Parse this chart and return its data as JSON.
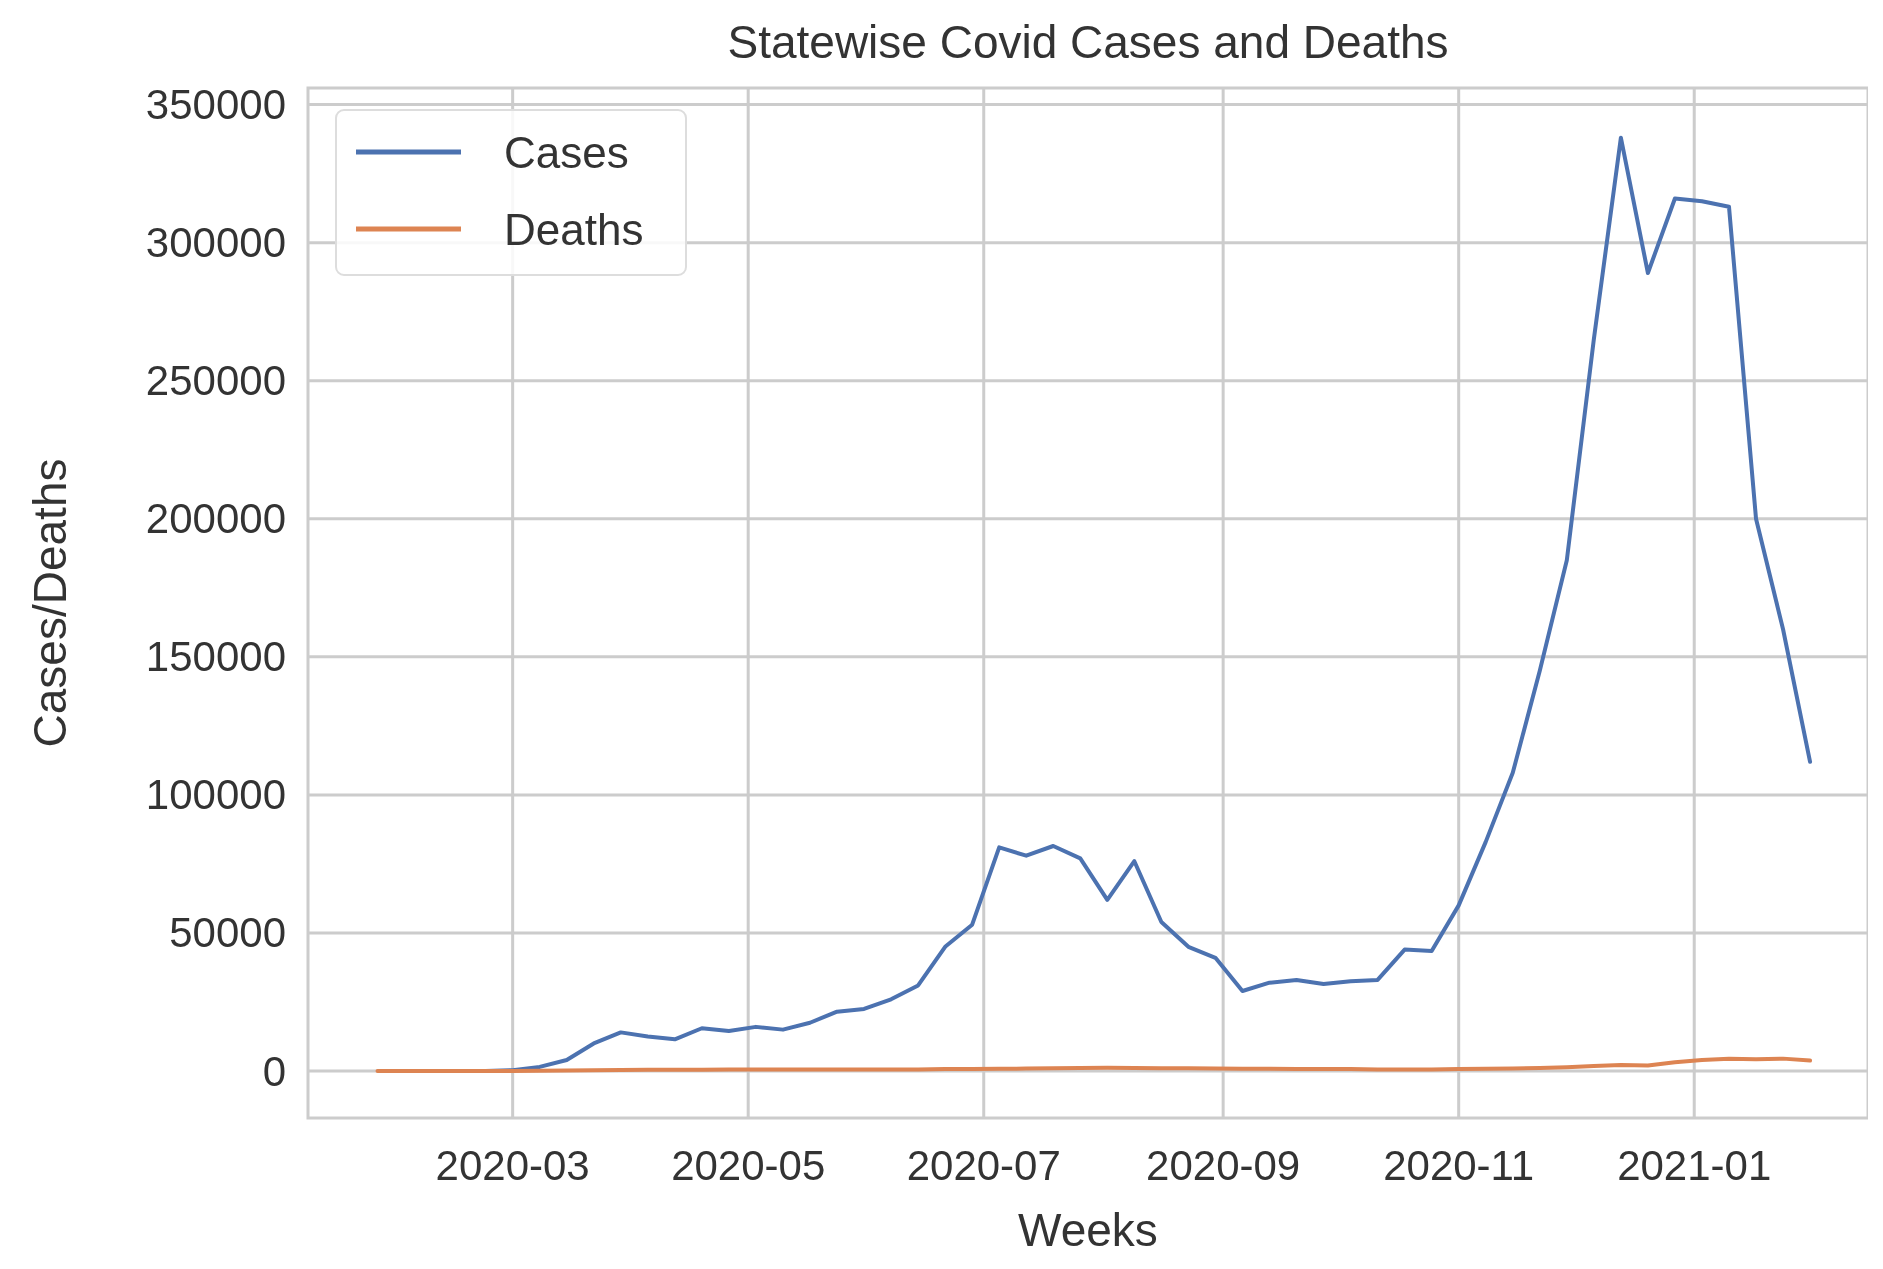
{
  "chart_data": {
    "type": "line",
    "title": "Statewise Covid Cases and Deaths",
    "xlabel": "Weeks",
    "ylabel": "Cases/Deaths",
    "x": [
      "2020-01-26",
      "2020-02-02",
      "2020-02-09",
      "2020-02-16",
      "2020-02-23",
      "2020-03-01",
      "2020-03-08",
      "2020-03-15",
      "2020-03-22",
      "2020-03-29",
      "2020-04-05",
      "2020-04-12",
      "2020-04-19",
      "2020-04-26",
      "2020-05-03",
      "2020-05-10",
      "2020-05-17",
      "2020-05-24",
      "2020-05-31",
      "2020-06-07",
      "2020-06-14",
      "2020-06-21",
      "2020-06-28",
      "2020-07-05",
      "2020-07-12",
      "2020-07-19",
      "2020-07-26",
      "2020-08-02",
      "2020-08-09",
      "2020-08-16",
      "2020-08-23",
      "2020-08-30",
      "2020-09-06",
      "2020-09-13",
      "2020-09-20",
      "2020-09-27",
      "2020-10-04",
      "2020-10-11",
      "2020-10-18",
      "2020-10-25",
      "2020-11-01",
      "2020-11-08",
      "2020-11-15",
      "2020-11-22",
      "2020-11-29",
      "2020-12-06",
      "2020-12-13",
      "2020-12-20",
      "2020-12-27",
      "2021-01-03",
      "2021-01-10",
      "2021-01-17",
      "2021-01-24",
      "2021-01-31"
    ],
    "series": [
      {
        "name": "Cases",
        "color": "#4c72b0",
        "values": [
          null,
          null,
          null,
          0,
          0,
          300,
          1500,
          4000,
          10000,
          14000,
          12500,
          11500,
          15500,
          14500,
          16000,
          15000,
          17500,
          21500,
          22500,
          26000,
          31000,
          45000,
          53000,
          81000,
          78000,
          81500,
          77000,
          62000,
          76000,
          54000,
          45000,
          41000,
          29000,
          32000,
          33000,
          31500,
          32500,
          33000,
          44000,
          43500,
          60000,
          83000,
          108000,
          145000,
          185000,
          265000,
          338000,
          289000,
          316000,
          315000,
          313000,
          200000,
          160000,
          112000
        ]
      },
      {
        "name": "Deaths",
        "color": "#dd8452",
        "values": [
          0,
          0,
          0,
          0,
          0,
          0,
          100,
          200,
          300,
          400,
          500,
          500,
          500,
          600,
          600,
          600,
          600,
          600,
          600,
          600,
          600,
          700,
          700,
          800,
          900,
          1000,
          1100,
          1200,
          1100,
          1000,
          1000,
          900,
          800,
          800,
          700,
          700,
          700,
          600,
          600,
          600,
          700,
          800,
          900,
          1100,
          1400,
          1800,
          2200,
          2000,
          3200,
          4000,
          4500,
          4300,
          4500,
          3800
        ]
      }
    ],
    "xlim": [
      "2020-01-08",
      "2021-02-15"
    ],
    "xticks": [
      {
        "value": "2020-03-01",
        "label": "2020-03"
      },
      {
        "value": "2020-05-01",
        "label": "2020-05"
      },
      {
        "value": "2020-07-01",
        "label": "2020-07"
      },
      {
        "value": "2020-09-01",
        "label": "2020-09"
      },
      {
        "value": "2020-11-01",
        "label": "2020-11"
      },
      {
        "value": "2021-01-01",
        "label": "2021-01"
      }
    ],
    "ylim": [
      -17000,
      356000
    ],
    "yticks": [
      0,
      50000,
      100000,
      150000,
      200000,
      250000,
      300000,
      350000
    ],
    "grid": true,
    "legend": "top left",
    "line_style": "solid",
    "marker": "none"
  }
}
